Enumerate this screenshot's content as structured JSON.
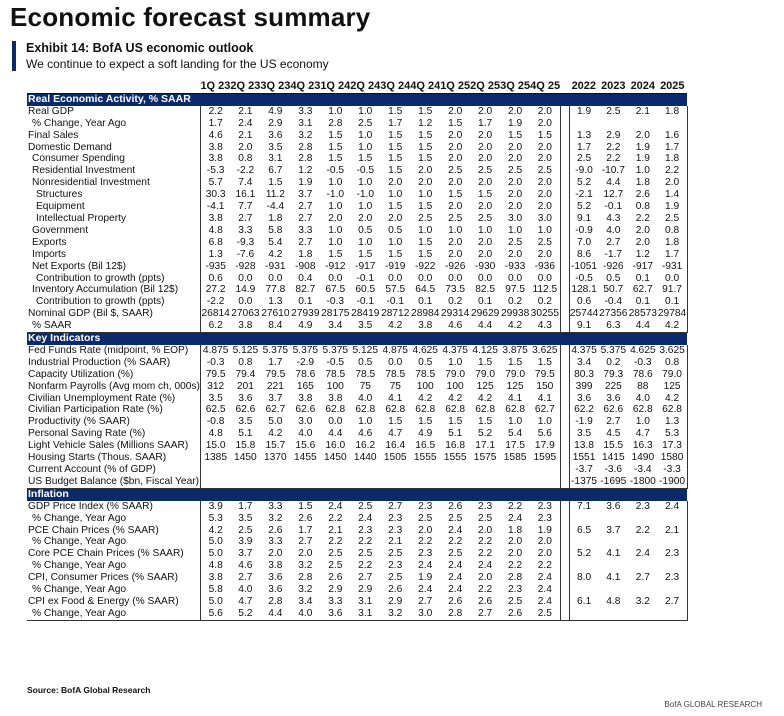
{
  "header": {
    "title": "Economic forecast summary",
    "exhibit_title": "Exhibit 14: BofA US economic outlook",
    "exhibit_subtitle": "We continue to expect a soft landing for the US economy"
  },
  "columns": {
    "quarters": [
      "1Q 23",
      "2Q 23",
      "3Q 23",
      "4Q 23",
      "1Q 24",
      "2Q 24",
      "3Q 24",
      "4Q 24",
      "1Q 25",
      "2Q 25",
      "3Q 25",
      "4Q 25"
    ],
    "years": [
      "2022",
      "2023",
      "2024",
      "2025"
    ]
  },
  "sections": [
    {
      "title": "Real Economic Activity, % SAAR",
      "rows": [
        {
          "label": "Real GDP",
          "indent": 0,
          "q": [
            "2.2",
            "2.1",
            "4.9",
            "3.3",
            "1.0",
            "1.0",
            "1.5",
            "1.5",
            "2.0",
            "2.0",
            "2.0",
            "2.0"
          ],
          "y": [
            "1.9",
            "2.5",
            "2.1",
            "1.8"
          ]
        },
        {
          "label": "% Change, Year Ago",
          "indent": 1,
          "q": [
            "1.7",
            "2.4",
            "2.9",
            "3.1",
            "2.8",
            "2.5",
            "1.7",
            "1.2",
            "1.5",
            "1.7",
            "1.9",
            "2.0"
          ],
          "y": [
            "",
            "",
            "",
            ""
          ]
        },
        {
          "label": "Final Sales",
          "indent": 0,
          "q": [
            "4.6",
            "2.1",
            "3.6",
            "3.2",
            "1.5",
            "1.0",
            "1.5",
            "1.5",
            "2.0",
            "2.0",
            "1.5",
            "1.5"
          ],
          "y": [
            "1.3",
            "2.9",
            "2.0",
            "1.6"
          ]
        },
        {
          "label": "Domestic Demand",
          "indent": 0,
          "q": [
            "3.8",
            "2.0",
            "3.5",
            "2.8",
            "1.5",
            "1.0",
            "1.5",
            "1.5",
            "2.0",
            "2.0",
            "2.0",
            "2.0"
          ],
          "y": [
            "1.7",
            "2.2",
            "1.9",
            "1.7"
          ]
        },
        {
          "label": "Consumer Spending",
          "indent": 1,
          "q": [
            "3.8",
            "0.8",
            "3.1",
            "2.8",
            "1.5",
            "1.5",
            "1.5",
            "1.5",
            "2.0",
            "2.0",
            "2.0",
            "2.0"
          ],
          "y": [
            "2.5",
            "2.2",
            "1.9",
            "1.8"
          ]
        },
        {
          "label": "Residential Investment",
          "indent": 1,
          "q": [
            "-5.3",
            "-2.2",
            "6.7",
            "1.2",
            "-0.5",
            "-0.5",
            "1.5",
            "2.0",
            "2.5",
            "2.5",
            "2.5",
            "2.5"
          ],
          "y": [
            "-9.0",
            "-10.7",
            "1.0",
            "2.2"
          ]
        },
        {
          "label": "Nonresidential Investment",
          "indent": 1,
          "q": [
            "5.7",
            "7.4",
            "1.5",
            "1.9",
            "1.0",
            "1.0",
            "2.0",
            "2.0",
            "2.0",
            "2.0",
            "2.0",
            "2.0"
          ],
          "y": [
            "5.2",
            "4.4",
            "1.8",
            "2.0"
          ]
        },
        {
          "label": "Structures",
          "indent": 2,
          "q": [
            "30.3",
            "16.1",
            "11.2",
            "3.7",
            "-1.0",
            "-1.0",
            "1.0",
            "1.0",
            "1.5",
            "1.5",
            "2.0",
            "2.0"
          ],
          "y": [
            "-2.1",
            "12.7",
            "2.6",
            "1.4"
          ]
        },
        {
          "label": "Equipment",
          "indent": 2,
          "q": [
            "-4.1",
            "7.7",
            "-4.4",
            "2.7",
            "1.0",
            "1.0",
            "1.5",
            "1.5",
            "2.0",
            "2.0",
            "2.0",
            "2.0"
          ],
          "y": [
            "5.2",
            "-0.1",
            "0.8",
            "1.9"
          ]
        },
        {
          "label": "Intellectual Property",
          "indent": 2,
          "q": [
            "3.8",
            "2.7",
            "1.8",
            "2.7",
            "2.0",
            "2.0",
            "2.0",
            "2.5",
            "2.5",
            "2.5",
            "3.0",
            "3.0"
          ],
          "y": [
            "9.1",
            "4.3",
            "2.2",
            "2.5"
          ]
        },
        {
          "label": "Government",
          "indent": 1,
          "q": [
            "4.8",
            "3.3",
            "5.8",
            "3.3",
            "1.0",
            "0.5",
            "0.5",
            "1.0",
            "1.0",
            "1.0",
            "1.0",
            "1.0"
          ],
          "y": [
            "-0.9",
            "4.0",
            "2.0",
            "0.8"
          ]
        },
        {
          "label": "Exports",
          "indent": 1,
          "q": [
            "6.8",
            "-9.3",
            "5.4",
            "2.7",
            "1.0",
            "1.0",
            "1.0",
            "1.5",
            "2.0",
            "2.0",
            "2.5",
            "2.5"
          ],
          "y": [
            "7.0",
            "2.7",
            "2.0",
            "1.8"
          ]
        },
        {
          "label": "Imports",
          "indent": 1,
          "q": [
            "1.3",
            "-7.6",
            "4.2",
            "1.8",
            "1.5",
            "1.5",
            "1.5",
            "1.5",
            "2.0",
            "2.0",
            "2.0",
            "2.0"
          ],
          "y": [
            "8.6",
            "-1.7",
            "1.2",
            "1.7"
          ]
        },
        {
          "label": "Net Exports (Bil 12$)",
          "indent": 1,
          "q": [
            "-935",
            "-928",
            "-931",
            "-908",
            "-912",
            "-917",
            "-919",
            "-922",
            "-926",
            "-930",
            "-933",
            "-936"
          ],
          "y": [
            "-1051",
            "-926",
            "-917",
            "-931"
          ]
        },
        {
          "label": "Contribution to growth (ppts)",
          "indent": 2,
          "q": [
            "0.6",
            "0.0",
            "0.0",
            "0.4",
            "0.0",
            "-0.1",
            "0.0",
            "0.0",
            "0.0",
            "0.0",
            "0.0",
            "0.0"
          ],
          "y": [
            "-0.5",
            "0.5",
            "0.1",
            "0.0"
          ]
        },
        {
          "label": "Inventory Accumulation (Bil 12$)",
          "indent": 1,
          "q": [
            "27.2",
            "14.9",
            "77.8",
            "82.7",
            "67.5",
            "60.5",
            "57.5",
            "64.5",
            "73.5",
            "82.5",
            "97.5",
            "112.5"
          ],
          "y": [
            "128.1",
            "50.7",
            "62.7",
            "91.7"
          ]
        },
        {
          "label": "Contribution to growth (ppts)",
          "indent": 2,
          "q": [
            "-2.2",
            "0.0",
            "1.3",
            "0.1",
            "-0.3",
            "-0.1",
            "-0.1",
            "0.1",
            "0.2",
            "0.1",
            "0.2",
            "0.2"
          ],
          "y": [
            "0.6",
            "-0.4",
            "0.1",
            "0.1"
          ]
        },
        {
          "label": "Nominal GDP (Bil $, SAAR)",
          "indent": 0,
          "q": [
            "26814",
            "27063",
            "27610",
            "27939",
            "28175",
            "28419",
            "28712",
            "28984",
            "29314",
            "29629",
            "29938",
            "30255"
          ],
          "y": [
            "25744",
            "27356",
            "28573",
            "29784"
          ]
        },
        {
          "label": "% SAAR",
          "indent": 1,
          "q": [
            "6.2",
            "3.8",
            "8.4",
            "4.9",
            "3.4",
            "3.5",
            "4.2",
            "3.8",
            "4.6",
            "4.4",
            "4.2",
            "4.3"
          ],
          "y": [
            "9.1",
            "6.3",
            "4.4",
            "4.2"
          ]
        }
      ]
    },
    {
      "title": "Key Indicators",
      "rows": [
        {
          "label": "Fed Funds Rate (midpoint, % EOP)",
          "indent": 0,
          "q": [
            "4.875",
            "5.125",
            "5.375",
            "5.375",
            "5.375",
            "5.125",
            "4.875",
            "4.625",
            "4.375",
            "4.125",
            "3.875",
            "3.625"
          ],
          "y": [
            "4.375",
            "5.375",
            "4.625",
            "3.625"
          ]
        },
        {
          "label": "Industrial Production (% SAAR)",
          "indent": 0,
          "q": [
            "-0.3",
            "0.8",
            "1.7",
            "-2.9",
            "-0.5",
            "0.5",
            "0.0",
            "0.5",
            "1.0",
            "1.5",
            "1.5",
            "1.5"
          ],
          "y": [
            "3.4",
            "0.2",
            "-0.3",
            "0.8"
          ]
        },
        {
          "label": "Capacity Utilization (%)",
          "indent": 0,
          "q": [
            "79.5",
            "79.4",
            "79.5",
            "78.6",
            "78.5",
            "78.5",
            "78.5",
            "78.5",
            "79.0",
            "79.0",
            "79.0",
            "79.5"
          ],
          "y": [
            "80.3",
            "79.3",
            "78.6",
            "79.0"
          ]
        },
        {
          "label": "Nonfarm Payrolls (Avg mom ch, 000s)",
          "indent": 0,
          "q": [
            "312",
            "201",
            "221",
            "165",
            "100",
            "75",
            "75",
            "100",
            "100",
            "125",
            "125",
            "150"
          ],
          "y": [
            "399",
            "225",
            "88",
            "125"
          ]
        },
        {
          "label": "Civilian Unemployment Rate (%)",
          "indent": 0,
          "q": [
            "3.5",
            "3.6",
            "3.7",
            "3.8",
            "3.8",
            "4.0",
            "4.1",
            "4.2",
            "4.2",
            "4.2",
            "4.1",
            "4.1"
          ],
          "y": [
            "3.6",
            "3.6",
            "4.0",
            "4.2"
          ]
        },
        {
          "label": "Civilian Participation Rate (%)",
          "indent": 0,
          "q": [
            "62.5",
            "62.6",
            "62.7",
            "62.6",
            "62.8",
            "62.8",
            "62.8",
            "62.8",
            "62.8",
            "62.8",
            "62.8",
            "62.7"
          ],
          "y": [
            "62.2",
            "62.6",
            "62.8",
            "62.8"
          ]
        },
        {
          "label": "Productivity (% SAAR)",
          "indent": 0,
          "q": [
            "-0.8",
            "3.5",
            "5.0",
            "3.0",
            "0.0",
            "1.0",
            "1.5",
            "1.5",
            "1.5",
            "1.5",
            "1.0",
            "1.0"
          ],
          "y": [
            "-1.9",
            "2.7",
            "1.0",
            "1.3"
          ]
        },
        {
          "label": "Personal Saving Rate (%)",
          "indent": 0,
          "q": [
            "4.8",
            "5.1",
            "4.2",
            "4.0",
            "4.4",
            "4.6",
            "4.7",
            "4.9",
            "5.1",
            "5.2",
            "5.4",
            "5.6"
          ],
          "y": [
            "3.5",
            "4.5",
            "4.7",
            "5.3"
          ]
        },
        {
          "label": "Light Vehicle Sales (Millions SAAR)",
          "indent": 0,
          "q": [
            "15.0",
            "15.8",
            "15.7",
            "15.6",
            "16.0",
            "16.2",
            "16.4",
            "16.5",
            "16.8",
            "17.1",
            "17.5",
            "17.9"
          ],
          "y": [
            "13.8",
            "15.5",
            "16.3",
            "17.3"
          ]
        },
        {
          "label": "Housing Starts (Thous. SAAR)",
          "indent": 0,
          "q": [
            "1385",
            "1450",
            "1370",
            "1455",
            "1450",
            "1440",
            "1505",
            "1555",
            "1555",
            "1575",
            "1585",
            "1595"
          ],
          "y": [
            "1551",
            "1415",
            "1490",
            "1580"
          ]
        },
        {
          "label": "Current Account (% of GDP)",
          "indent": 0,
          "q": [
            "",
            "",
            "",
            "",
            "",
            "",
            "",
            "",
            "",
            "",
            "",
            ""
          ],
          "y": [
            "-3.7",
            "-3.6",
            "-3.4",
            "-3.3"
          ]
        },
        {
          "label": "US Budget Balance ($bn, Fiscal Year)",
          "indent": 0,
          "q": [
            "",
            "",
            "",
            "",
            "",
            "",
            "",
            "",
            "",
            "",
            "",
            ""
          ],
          "y": [
            "-1375",
            "-1695",
            "-1800",
            "-1900"
          ]
        }
      ]
    },
    {
      "title": "Inflation",
      "rows": [
        {
          "label": "GDP Price Index (% SAAR)",
          "indent": 0,
          "q": [
            "3.9",
            "1.7",
            "3.3",
            "1.5",
            "2.4",
            "2.5",
            "2.7",
            "2.3",
            "2.6",
            "2.3",
            "2.2",
            "2.3"
          ],
          "y": [
            "7.1",
            "3.6",
            "2.3",
            "2.4"
          ]
        },
        {
          "label": "% Change, Year Ago",
          "indent": 1,
          "q": [
            "5.3",
            "3.5",
            "3.2",
            "2.6",
            "2.2",
            "2.4",
            "2.3",
            "2.5",
            "2.5",
            "2.5",
            "2.4",
            "2.3"
          ],
          "y": [
            "",
            "",
            "",
            ""
          ]
        },
        {
          "label": "PCE Chain Prices (% SAAR)",
          "indent": 0,
          "q": [
            "4.2",
            "2.5",
            "2.6",
            "1.7",
            "2.1",
            "2.3",
            "2.3",
            "2.0",
            "2.4",
            "2.0",
            "1.8",
            "1.9"
          ],
          "y": [
            "6.5",
            "3.7",
            "2.2",
            "2.1"
          ]
        },
        {
          "label": "% Change, Year Ago",
          "indent": 1,
          "q": [
            "5.0",
            "3.9",
            "3.3",
            "2.7",
            "2.2",
            "2.2",
            "2.1",
            "2.2",
            "2.2",
            "2.2",
            "2.0",
            "2.0"
          ],
          "y": [
            "",
            "",
            "",
            ""
          ]
        },
        {
          "label": "Core PCE Chain Prices (% SAAR)",
          "indent": 0,
          "q": [
            "5.0",
            "3.7",
            "2.0",
            "2.0",
            "2.5",
            "2.5",
            "2.5",
            "2.3",
            "2.5",
            "2.2",
            "2.0",
            "2.0"
          ],
          "y": [
            "5.2",
            "4.1",
            "2.4",
            "2.3"
          ]
        },
        {
          "label": "% Change, Year Ago",
          "indent": 1,
          "q": [
            "4.8",
            "4.6",
            "3.8",
            "3.2",
            "2.5",
            "2.2",
            "2.3",
            "2.4",
            "2.4",
            "2.4",
            "2.2",
            "2.2"
          ],
          "y": [
            "",
            "",
            "",
            ""
          ]
        },
        {
          "label": "CPI, Consumer Prices (% SAAR)",
          "indent": 0,
          "q": [
            "3.8",
            "2.7",
            "3.6",
            "2.8",
            "2.6",
            "2.7",
            "2.5",
            "1.9",
            "2.4",
            "2.0",
            "2.8",
            "2.4"
          ],
          "y": [
            "8.0",
            "4.1",
            "2.7",
            "2.3"
          ]
        },
        {
          "label": "% Change, Year Ago",
          "indent": 1,
          "q": [
            "5.8",
            "4.0",
            "3.6",
            "3.2",
            "2.9",
            "2.9",
            "2.6",
            "2.4",
            "2.4",
            "2.2",
            "2.3",
            "2.4"
          ],
          "y": [
            "",
            "",
            "",
            ""
          ]
        },
        {
          "label": "CPI ex Food & Energy (% SAAR)",
          "indent": 0,
          "q": [
            "5.0",
            "4.7",
            "2.8",
            "3.4",
            "3.3",
            "3.1",
            "2.9",
            "2.7",
            "2.6",
            "2.6",
            "2.5",
            "2.4"
          ],
          "y": [
            "6.1",
            "4.8",
            "3.2",
            "2.7"
          ]
        },
        {
          "label": "% Change, Year Ago",
          "indent": 1,
          "q": [
            "5.6",
            "5.2",
            "4.4",
            "4.0",
            "3.6",
            "3.1",
            "3.2",
            "3.0",
            "2.8",
            "2.7",
            "2.6",
            "2.5"
          ],
          "y": [
            "",
            "",
            "",
            ""
          ]
        }
      ]
    }
  ],
  "footer": {
    "source": "Source: BofA Global Research",
    "brand": "BofA GLOBAL RESEARCH"
  }
}
